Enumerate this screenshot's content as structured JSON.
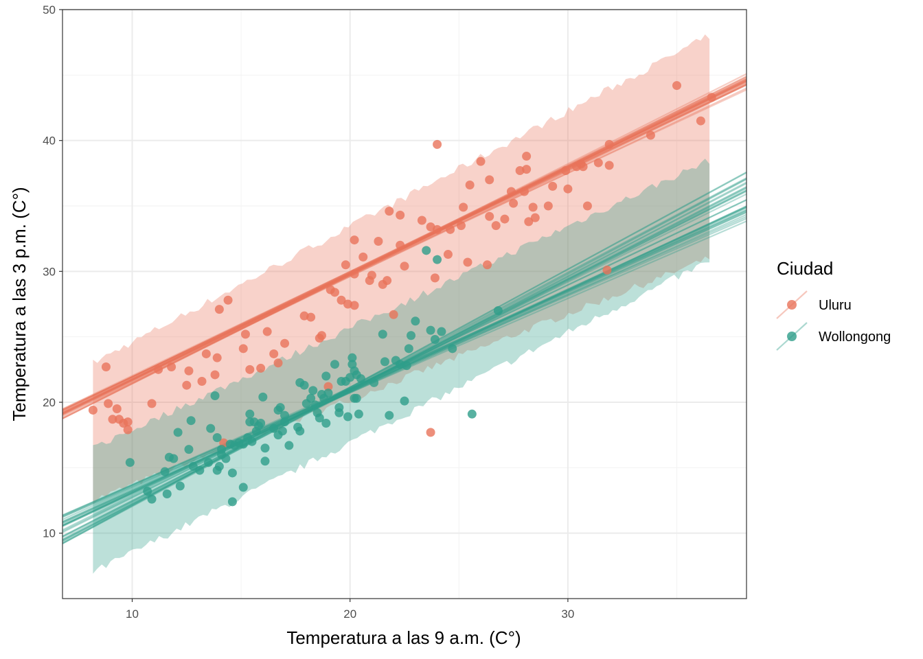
{
  "chart_data": {
    "type": "scatter",
    "xlabel": "Temperatura a las 9 a.m. (C°)",
    "ylabel": "Temperatura a las 3 p.m. (C°)",
    "xlim": [
      6.8,
      38.2
    ],
    "ylim": [
      5,
      50
    ],
    "xticks": [
      10,
      20,
      30
    ],
    "yticks": [
      10,
      20,
      30,
      40,
      50
    ],
    "grid": true,
    "legend": {
      "title": "Ciudad",
      "position": "right"
    },
    "series": [
      {
        "name": "Uluru",
        "color": "#E8735A",
        "ribbon": {
          "x": [
            8.2,
            36.5
          ],
          "lower": [
            12.5,
            31.0
          ],
          "upper": [
            23.0,
            48.0
          ]
        },
        "fit_lines": {
          "x": [
            6.8,
            38.2
          ],
          "intercept_range": [
            13.0,
            14.2
          ],
          "slope_range": [
            0.78,
            0.84
          ],
          "count": 25
        },
        "points": [
          [
            8.2,
            19.4
          ],
          [
            8.8,
            22.7
          ],
          [
            8.9,
            19.9
          ],
          [
            9.1,
            18.7
          ],
          [
            9.3,
            19.5
          ],
          [
            9.4,
            18.7
          ],
          [
            9.6,
            18.4
          ],
          [
            9.8,
            18.5
          ],
          [
            9.8,
            17.9
          ],
          [
            10.9,
            19.9
          ],
          [
            11.2,
            22.5
          ],
          [
            11.8,
            22.7
          ],
          [
            12.5,
            21.3
          ],
          [
            12.6,
            22.4
          ],
          [
            13.2,
            21.6
          ],
          [
            13.4,
            23.7
          ],
          [
            13.8,
            22.1
          ],
          [
            13.9,
            23.4
          ],
          [
            14.0,
            27.1
          ],
          [
            14.2,
            16.9
          ],
          [
            14.4,
            27.8
          ],
          [
            15.1,
            24.1
          ],
          [
            15.2,
            25.2
          ],
          [
            15.4,
            22.5
          ],
          [
            15.9,
            22.6
          ],
          [
            16.2,
            25.4
          ],
          [
            16.5,
            23.7
          ],
          [
            16.7,
            23.0
          ],
          [
            17.0,
            24.5
          ],
          [
            17.9,
            26.6
          ],
          [
            18.2,
            26.5
          ],
          [
            18.6,
            24.9
          ],
          [
            18.7,
            25.1
          ],
          [
            19.0,
            21.2
          ],
          [
            19.1,
            28.6
          ],
          [
            19.3,
            28.4
          ],
          [
            19.6,
            27.8
          ],
          [
            19.8,
            30.5
          ],
          [
            19.9,
            27.5
          ],
          [
            20.2,
            32.4
          ],
          [
            20.2,
            29.8
          ],
          [
            20.2,
            27.4
          ],
          [
            20.6,
            31.1
          ],
          [
            20.9,
            29.3
          ],
          [
            21.0,
            29.7
          ],
          [
            21.3,
            32.3
          ],
          [
            21.5,
            29.0
          ],
          [
            21.7,
            29.3
          ],
          [
            21.8,
            34.6
          ],
          [
            22.0,
            26.7
          ],
          [
            22.3,
            34.3
          ],
          [
            22.3,
            32.0
          ],
          [
            22.5,
            30.4
          ],
          [
            23.3,
            33.9
          ],
          [
            23.7,
            33.4
          ],
          [
            23.7,
            17.7
          ],
          [
            24.0,
            33.2
          ],
          [
            23.9,
            29.5
          ],
          [
            24.0,
            39.7
          ],
          [
            24.5,
            31.3
          ],
          [
            24.6,
            33.2
          ],
          [
            25.1,
            33.5
          ],
          [
            25.2,
            34.9
          ],
          [
            25.4,
            30.7
          ],
          [
            25.5,
            36.6
          ],
          [
            26.0,
            38.4
          ],
          [
            26.3,
            30.5
          ],
          [
            26.4,
            34.2
          ],
          [
            26.4,
            37.0
          ],
          [
            26.7,
            33.5
          ],
          [
            27.1,
            34.0
          ],
          [
            27.4,
            36.1
          ],
          [
            27.5,
            35.2
          ],
          [
            27.8,
            37.7
          ],
          [
            28.0,
            36.1
          ],
          [
            28.1,
            38.8
          ],
          [
            28.1,
            37.8
          ],
          [
            28.2,
            33.8
          ],
          [
            28.4,
            34.9
          ],
          [
            28.5,
            34.1
          ],
          [
            29.1,
            35.0
          ],
          [
            29.3,
            36.5
          ],
          [
            29.9,
            37.7
          ],
          [
            30.0,
            36.3
          ],
          [
            30.4,
            38.0
          ],
          [
            30.6,
            38.2
          ],
          [
            30.7,
            38.0
          ],
          [
            30.9,
            35.0
          ],
          [
            31.4,
            38.3
          ],
          [
            31.8,
            30.1
          ],
          [
            31.9,
            38.1
          ],
          [
            31.9,
            39.7
          ],
          [
            33.8,
            40.4
          ],
          [
            35.0,
            44.2
          ],
          [
            36.1,
            41.5
          ],
          [
            36.6,
            43.3
          ]
        ]
      },
      {
        "name": "Wollongong",
        "color": "#2E9E8A",
        "ribbon": {
          "x": [
            8.2,
            36.5
          ],
          "lower": [
            7.0,
            30.8
          ],
          "upper": [
            16.5,
            38.5
          ]
        },
        "fit_lines": {
          "x": [
            6.8,
            38.2
          ],
          "intercept_range": [
            3.0,
            6.5
          ],
          "slope_range": [
            0.72,
            0.9
          ],
          "count": 30
        },
        "points": [
          [
            9.9,
            15.4
          ],
          [
            10.7,
            13.2
          ],
          [
            10.9,
            12.6
          ],
          [
            11.5,
            14.7
          ],
          [
            11.6,
            13.0
          ],
          [
            11.7,
            15.8
          ],
          [
            11.9,
            15.7
          ],
          [
            12.1,
            17.7
          ],
          [
            12.2,
            13.6
          ],
          [
            12.6,
            16.4
          ],
          [
            12.7,
            18.6
          ],
          [
            12.8,
            15.1
          ],
          [
            13.1,
            14.8
          ],
          [
            13.5,
            15.4
          ],
          [
            13.6,
            18.0
          ],
          [
            13.8,
            20.5
          ],
          [
            13.9,
            17.3
          ],
          [
            13.9,
            14.8
          ],
          [
            14.0,
            15.1
          ],
          [
            14.1,
            16.4
          ],
          [
            14.1,
            16.0
          ],
          [
            14.3,
            15.7
          ],
          [
            14.5,
            16.8
          ],
          [
            14.6,
            12.4
          ],
          [
            14.6,
            14.6
          ],
          [
            14.7,
            16.7
          ],
          [
            14.9,
            16.9
          ],
          [
            15.1,
            13.5
          ],
          [
            15.1,
            16.8
          ],
          [
            15.3,
            17.3
          ],
          [
            15.4,
            18.5
          ],
          [
            15.5,
            17.0
          ],
          [
            15.4,
            19.1
          ],
          [
            15.6,
            18.5
          ],
          [
            15.7,
            17.8
          ],
          [
            15.8,
            18.2
          ],
          [
            15.9,
            18.4
          ],
          [
            16.0,
            20.4
          ],
          [
            16.1,
            16.5
          ],
          [
            16.1,
            15.5
          ],
          [
            16.5,
            18.0
          ],
          [
            16.7,
            19.4
          ],
          [
            16.7,
            17.5
          ],
          [
            16.8,
            19.6
          ],
          [
            16.9,
            17.8
          ],
          [
            17.0,
            19.0
          ],
          [
            17.0,
            18.5
          ],
          [
            17.2,
            16.7
          ],
          [
            17.6,
            18.1
          ],
          [
            17.7,
            17.8
          ],
          [
            17.7,
            21.5
          ],
          [
            17.9,
            21.3
          ],
          [
            18.0,
            19.9
          ],
          [
            18.2,
            20.3
          ],
          [
            18.3,
            20.9
          ],
          [
            18.4,
            19.8
          ],
          [
            18.5,
            19.2
          ],
          [
            18.6,
            18.8
          ],
          [
            18.7,
            20.6
          ],
          [
            18.8,
            20.3
          ],
          [
            18.9,
            22.0
          ],
          [
            18.9,
            18.4
          ],
          [
            19.0,
            20.7
          ],
          [
            19.3,
            22.9
          ],
          [
            19.5,
            19.6
          ],
          [
            19.5,
            19.2
          ],
          [
            19.6,
            21.6
          ],
          [
            19.8,
            21.6
          ],
          [
            19.9,
            18.9
          ],
          [
            20.0,
            21.9
          ],
          [
            20.1,
            23.4
          ],
          [
            20.1,
            22.9
          ],
          [
            20.2,
            22.4
          ],
          [
            20.2,
            20.3
          ],
          [
            20.3,
            22.1
          ],
          [
            20.3,
            20.3
          ],
          [
            20.4,
            19.1
          ],
          [
            20.5,
            21.8
          ],
          [
            21.1,
            21.5
          ],
          [
            21.5,
            25.2
          ],
          [
            21.6,
            23.1
          ],
          [
            21.8,
            19.0
          ],
          [
            22.1,
            23.2
          ],
          [
            22.3,
            22.9
          ],
          [
            22.5,
            20.1
          ],
          [
            22.6,
            22.8
          ],
          [
            22.7,
            24.1
          ],
          [
            22.8,
            25.1
          ],
          [
            23.0,
            26.2
          ],
          [
            23.5,
            31.6
          ],
          [
            23.7,
            25.5
          ],
          [
            23.9,
            24.8
          ],
          [
            24.0,
            30.9
          ],
          [
            24.2,
            25.4
          ],
          [
            24.7,
            24.1
          ],
          [
            25.6,
            19.1
          ],
          [
            26.8,
            27.0
          ]
        ]
      }
    ]
  }
}
